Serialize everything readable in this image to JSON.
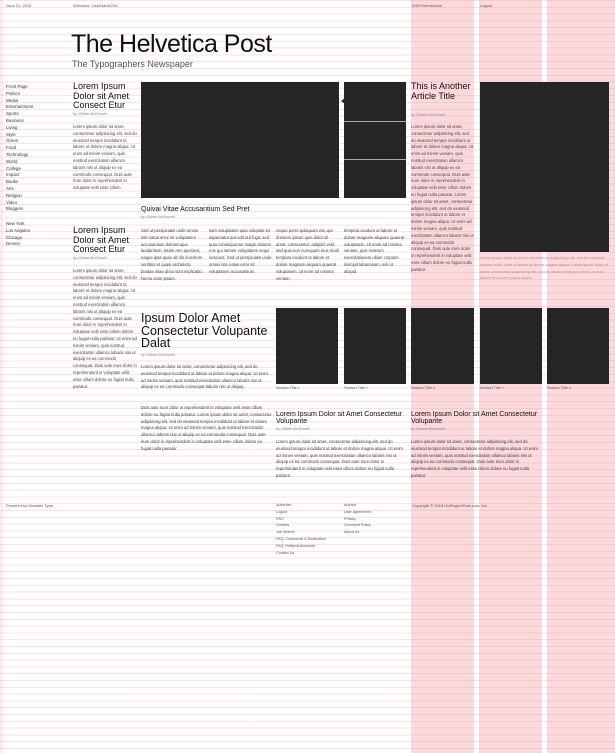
{
  "topbar": {
    "date": "June 21, 2015",
    "welcome": "Welcome, UserName234",
    "preferences": "Edit Preferences",
    "logout": "Logout"
  },
  "masthead": {
    "title": "The Helvetica Post",
    "tagline": "The Typographers Newspaper"
  },
  "nav": {
    "sections": [
      "Front Page",
      "Politics",
      "Media",
      "Entertainment",
      "Sports",
      "Business",
      "Living",
      "Style",
      "Green",
      "Food",
      "Technology",
      "World",
      "College",
      "Impact",
      "Books",
      "Arts",
      "Religion",
      "Video",
      "Bloggers"
    ],
    "cities": [
      "New York",
      "Los Angeles",
      "Chicago",
      "Denver"
    ]
  },
  "left_col": {
    "article1": {
      "headline": "Lorem Ipsum Dolor sit Amet Consect Etur",
      "byline": "by Gilbert McDowell",
      "body": "Lorem ipsum dolor sit amet, consectetur adipisicing elit, sed do eiusmod tempor incididunt ut labore et dolore magna aliqua. Ut enim ad minim veniam, quis nostrud exercitation ullamco laboris nisi ut aliquip ex ea commodo consequat. Duis aute irure dolor in reprehenderit in voluptate velit esse cillum."
    },
    "article2": {
      "headline": "Lorem Ipsum Dolor sit Amet Consect Etur",
      "byline": "by Gilbert McDowell",
      "body": "Lorem ipsum dolor sit amet, consectetur adipisicing elit, sed do eiusmod tempor incididunt ut labore et dolore magna aliqua. Ut enim ad minim veniam, quis nostrud exercitation ullamco laboris nisi ut aliquip ex ea commodo consequat. Duis aute irure dolor in reprehenderit in voluptate velit esse cillum dolore eu fugiat nulla pariatur. Ut enim ad minim veniam, quis nostrud exercitation ullamco laboris nisi ut aliquip ex ea commodo consequat. Duis aute irure dolor in reprehenderit in voluptate velit esse cillum dolore eu fugiat nulla pariatur."
    }
  },
  "feature": {
    "caption": "Quivai Vitae Accusantium Sed Pret",
    "byline": "by Gilbert McDowell",
    "col1": "Sed ut perspiciatis unde omnis iste natus error sit voluptatem accusantium doloremque laudantium, totam rem aperiam, eaque ipsa quae ab illo inventore veritatis et quasi architecto beatae vitae dicta sunt explicabo. Nemo enim ipsam.",
    "col2": "sam voluptatem quia voluptas sit aspernatur aut odit aut fugit, sed quia consequuntur magni dolores eos qui ratione voluptatem sequi nesciunt. Sed ut perspiciatis unde omnis iste natus error sit voluptatem accusantium.",
    "col3": "neque porro quisquam est, qui dolorem ipsum quia dolor sit amet, consectetur, adipisci velit, sed quia non numquam eius modi tempora incidunt ut labore et dolore magnam aliquam quaerat voluptatem. Ut enim ad minima veniam,",
    "col4": "tempora incidunt ut labore et dolore magnam aliquam quaerat voluptatem. Ut enim ad minima veniam, quis nostrum exercitationem ullam corporis suscipit laboriosam, nisi ut aliquid."
  },
  "right_article": {
    "headline": "This is Another Article Title",
    "byline": "by Gilbert McDowell",
    "body": "Lorem ipsum dolor sit amet, consectetur adipisicing elit, sed do eiusmod tempor incididunt ut labore et dolore magna aliqua. Ut enim ad minim veniam, quis nostrud exercitation ullamco laboris nisi ut aliquip ex ea commodo consequat. Duis aute irure dolor in reprehenderit in voluptate velit esse cillum dolore eu fugiat nulla pariatur. Lorem ipsum dolor sit amet, consectetur adipisicing elit, sed do eiusmod tempor incididunt ut labore et dolore magna aliqua. Ut enim ad minim veniam, quis nostrud exercitation ullamco laboris nisi ut aliquip ex ea commodo consequat. Duis aute irure dolor in reprehenderit in voluptate velit esse cillum dolore eu fugiat nulla pariatur."
  },
  "faint_overlay": "Lorem ipsum dolor sit amet, consectetur adipisicing elit, sed do eiusmod tempor incidi- dunt ut labore et dolore magna aliqua. Lorem ipsum dolor sit amet, consectetur adipisicing elit, sed do eiusmod tempor incidi- dunt ut labore et dolore magna aliqua.",
  "mid_article": {
    "headline": "Ipsum Dolor Amet Consectetur Volupante Dalat",
    "byline": "by Gilbert McDowell",
    "body1": "Lorem ipsum dolor sit amet, consectetur adipisicing elit, sed do eiusmod tempor incididunt ut labore et dolore magna aliqua. Ut enim ad minim veniam, quis nostrud exercitation ullamco laboris nisi ut aliquip ex ea commodo consequat laboris nisi ut aliquip.",
    "body2": "Duis aute irure dolor in reprehenderit in voluptate velit esse cillum dolore eu fugiat nulla pariatur. Lorem ipsum dolor sit amet, consectetur adipisicing elit, sed do eiusmod tempor incididunt ut labore et dolore magna aliqua. Ut enim ad minim veniam, quis nostrud exercitation ullamco laboris nisi ut aliquip ex ea commodo consequat. Duis aute irure dolor in reprehenderit in voluptate velit esse cillum dolore eu fugiat nulla pariatur."
  },
  "section_thumbs": {
    "label": "Section Title",
    "arrow": "»"
  },
  "bottom_articles": [
    {
      "headline": "Lorem Ipsum Dolor sit Amet Consectetur Volupante",
      "byline": "by Gilbert McDowell",
      "body": "Lorem ipsum dolor sit amet, consectetur adipisicing elit, sed do eiusmod tempor incididunt ut labore et dolore magna aliqua. Ut enim ad minim veniam, quis nostrud exercitation ullamco laboris nisi ut aliquip ex ea commodo consequat. Duis aute irure dolor in reprehenderit in voluptate velit esse cillum dolore eu fugiat nulla pariatur."
    },
    {
      "headline": "Lorem Ipsum Dolor sit Amet Consectetur Volupante",
      "byline": "by Gilbert McDowell",
      "body": "Lorem ipsum dolor sit amet, consectetur adipisicing elit, sed do eiusmod tempor incididunt ut labore et dolore magna aliqua. Ut enim ad minim veniam, quis nostrud exercitation ullamco laboris nisi ut aliquip ex ea commodo consequat. Duis aute irure dolor in reprehenderit in voluptate velit esse cillum dolore eu fugiat nulla pariatur."
    }
  ],
  "footer": {
    "powered": "Powered by Movable Type",
    "links1": [
      "Advertise",
      "Logout",
      "RSS",
      "Careers",
      "Job Search",
      "FAQ: Comments & Moderation",
      "FAQ: Huffpost Accounts",
      "Contact Us"
    ],
    "links2": [
      "Archive",
      "User Agreement",
      "Privacy",
      "Comment Policy",
      "About Us"
    ],
    "copyright": "Copyright © 2015 HuffingtonPost.com, Inc."
  },
  "colors": {
    "grid_column": "#f4a0a8",
    "image_fill": "#252525"
  }
}
